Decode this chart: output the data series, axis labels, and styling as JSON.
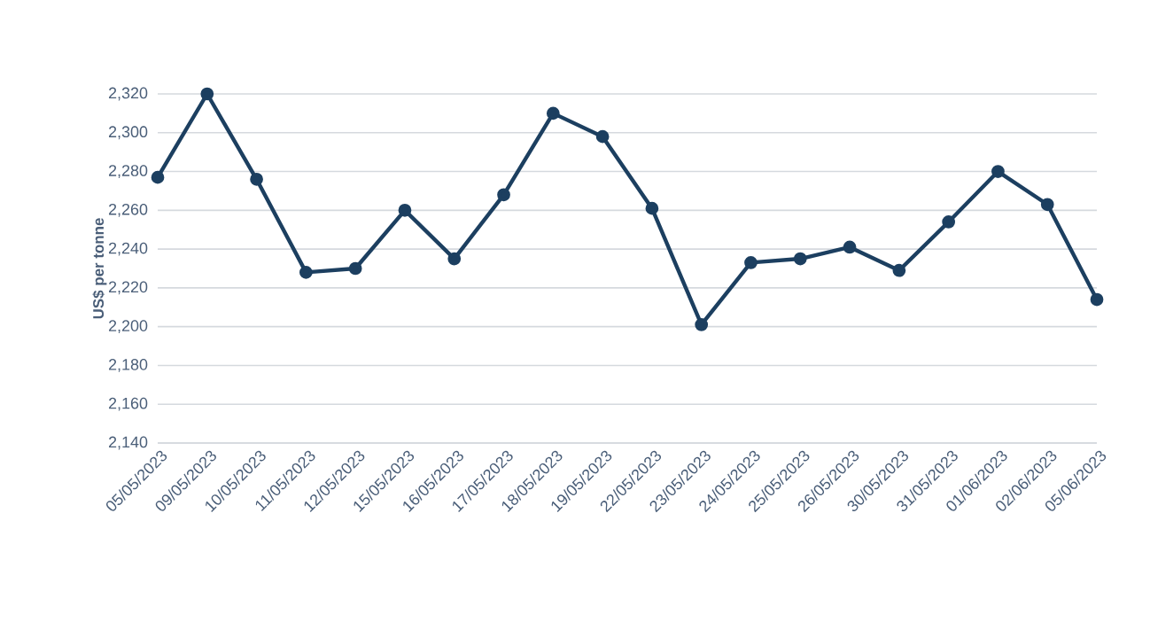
{
  "chart_data": {
    "type": "line",
    "ylabel": "US$ per tonne",
    "categories": [
      "05/05/2023",
      "09/05/2023",
      "10/05/2023",
      "11/05/2023",
      "12/05/2023",
      "15/05/2023",
      "16/05/2023",
      "17/05/2023",
      "18/05/2023",
      "19/05/2023",
      "22/05/2023",
      "23/05/2023",
      "24/05/2023",
      "25/05/2023",
      "26/05/2023",
      "30/05/2023",
      "31/05/2023",
      "01/06/2023",
      "02/06/2023",
      "05/06/2023"
    ],
    "series": [
      {
        "color": "#1c3f60",
        "values": [
          2277,
          2320,
          2276,
          2228,
          2230,
          2260,
          2235,
          2268,
          2310,
          2298,
          2261,
          2201,
          2233,
          2235,
          2241,
          2229,
          2254,
          2280,
          2263,
          2214
        ]
      }
    ],
    "ylim": [
      2140,
      2320
    ],
    "yticks": [
      {
        "value": 2140,
        "label": "2,140"
      },
      {
        "value": 2160,
        "label": "2,160"
      },
      {
        "value": 2180,
        "label": "2,180"
      },
      {
        "value": 2200,
        "label": "2,200"
      },
      {
        "value": 2220,
        "label": "2,220"
      },
      {
        "value": 2240,
        "label": "2,240"
      },
      {
        "value": 2260,
        "label": "2,260"
      },
      {
        "value": 2280,
        "label": "2,280"
      },
      {
        "value": 2300,
        "label": "2,300"
      },
      {
        "value": 2320,
        "label": "2,320"
      }
    ],
    "grid": "y",
    "marker": "circle",
    "line_style": "solid"
  }
}
